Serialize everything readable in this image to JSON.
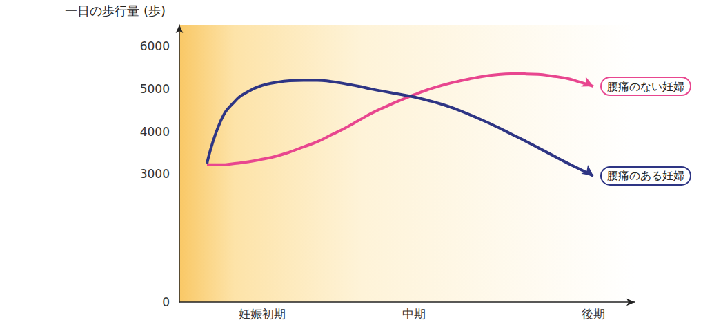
{
  "chart_data": {
    "type": "line",
    "ylabel": "一日の歩行量 (歩)",
    "categories": [
      null,
      null,
      null,
      null,
      null,
      null,
      "妊娠初期",
      null,
      null,
      null,
      null,
      null,
      null,
      null,
      null,
      null,
      null,
      "中期",
      null,
      null,
      null,
      null,
      null,
      null,
      null,
      null,
      null,
      null,
      null,
      null,
      "後期",
      null,
      null,
      null
    ],
    "series": [
      {
        "name": "腰痛のない妊婦",
        "color": "#e8468f",
        "line_style": "solid",
        "values": [
          null,
          null,
          3220,
          3220,
          3250,
          3290,
          3350,
          3420,
          3520,
          3640,
          3760,
          3920,
          4080,
          4260,
          4440,
          4590,
          4730,
          4860,
          4980,
          5080,
          5160,
          5230,
          5290,
          5330,
          5350,
          5350,
          5340,
          5300,
          5250,
          5160,
          5060,
          null,
          null,
          null
        ]
      },
      {
        "name": "腰痛のある妊婦",
        "color": "#2e3584",
        "line_style": "solid",
        "values": [
          null,
          null,
          3250,
          4250,
          4700,
          4940,
          5080,
          5150,
          5190,
          5200,
          5200,
          5170,
          5120,
          5060,
          4990,
          4930,
          4870,
          4810,
          4730,
          4640,
          4530,
          4400,
          4260,
          4110,
          3950,
          3790,
          3620,
          3450,
          3280,
          3120,
          2960,
          null,
          null,
          null
        ]
      }
    ],
    "ylim": [
      0,
      6500
    ],
    "yticks": [
      0,
      3000,
      4000,
      5000,
      6000
    ],
    "grid": false
  }
}
